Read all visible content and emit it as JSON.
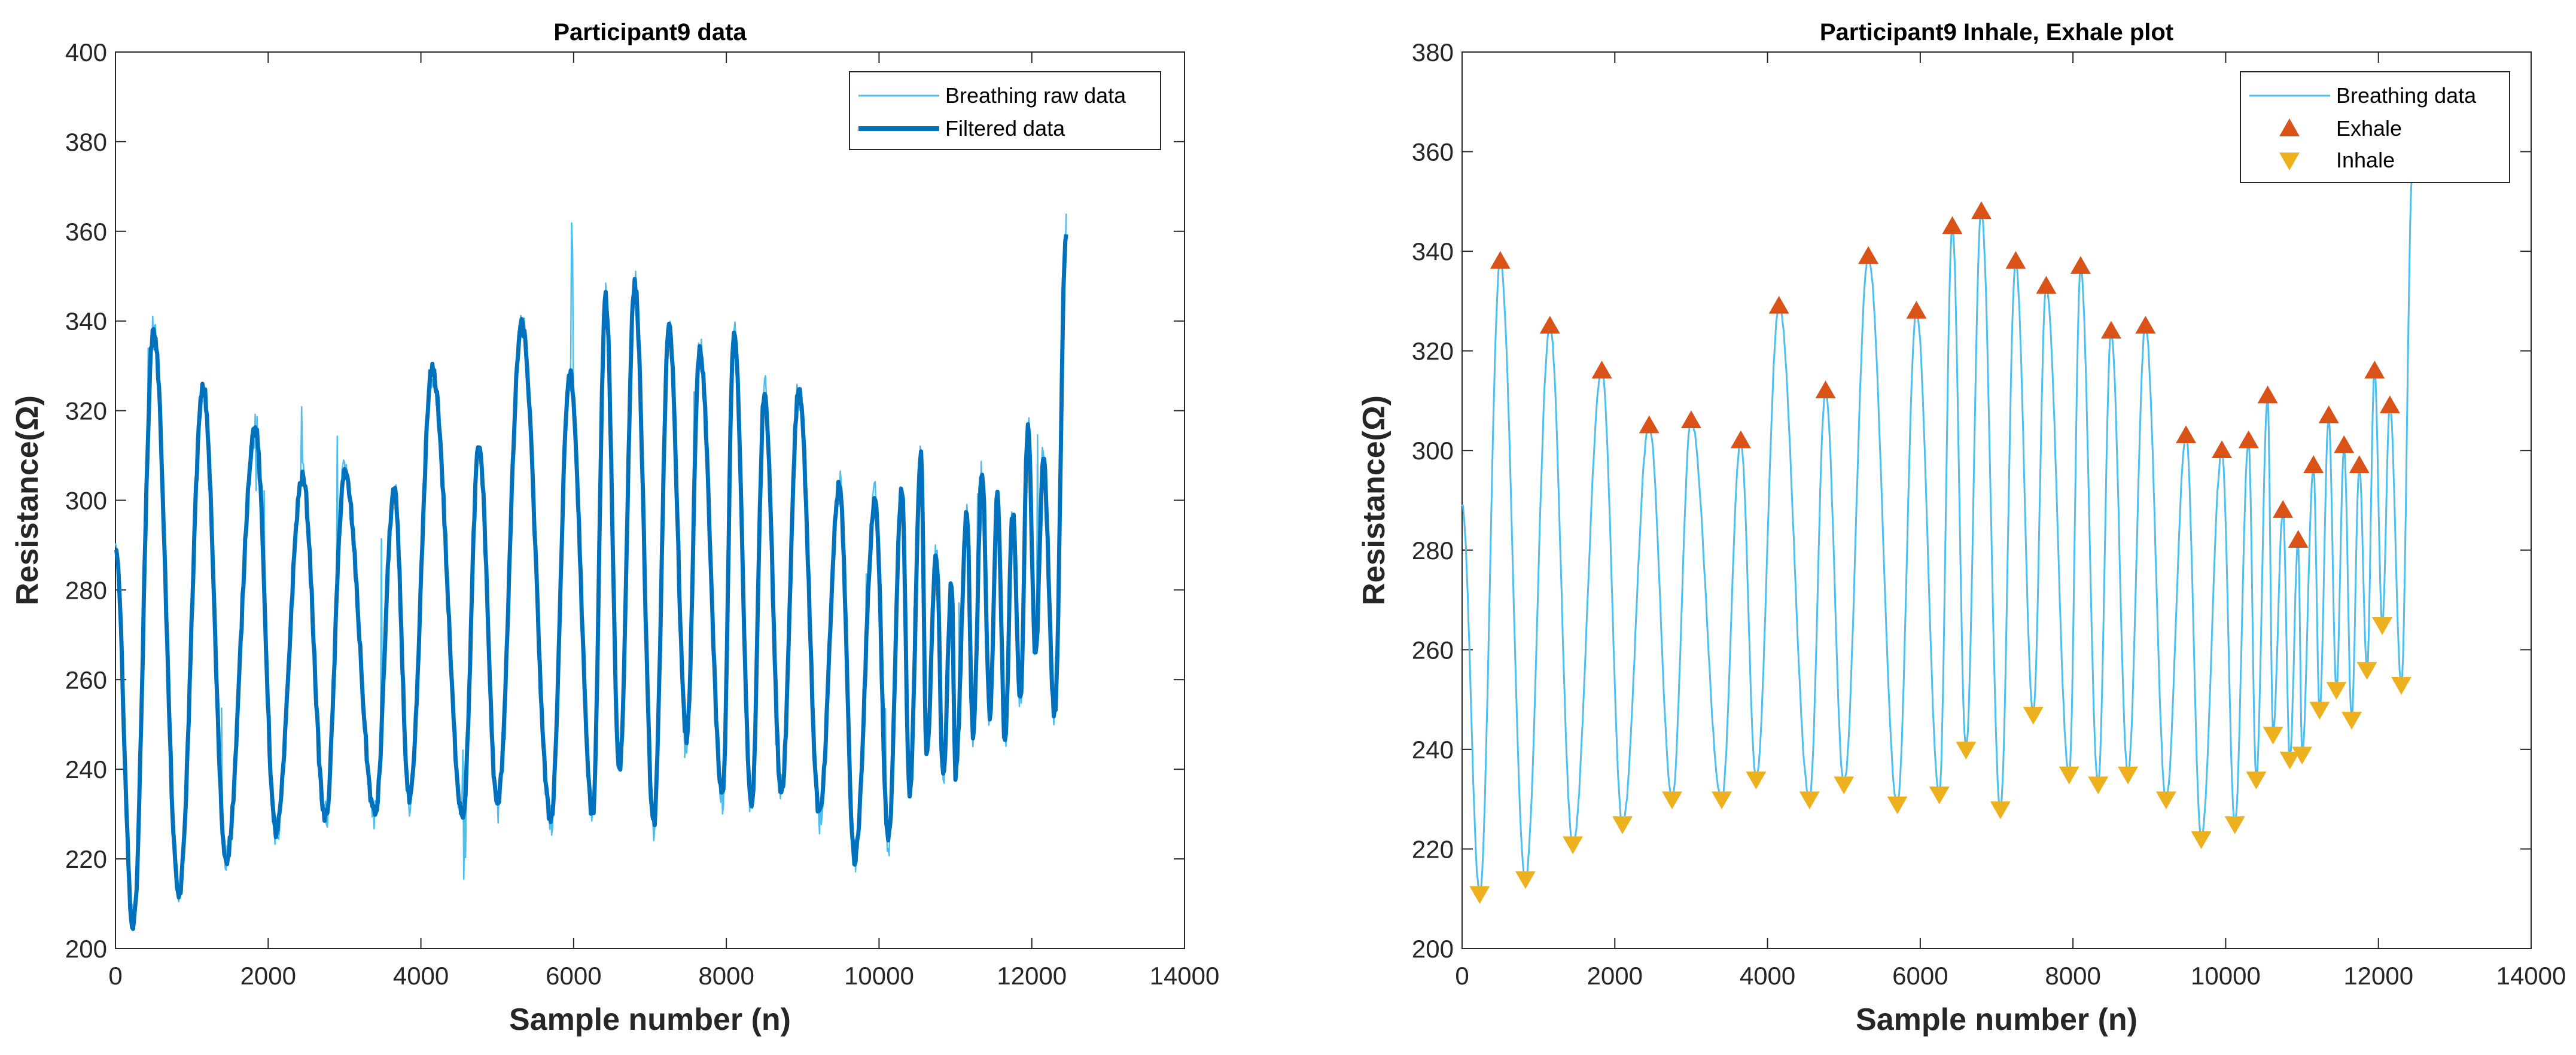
{
  "chart_data": [
    {
      "type": "line",
      "title": "Participant9 data",
      "xlabel": "Sample number (n)",
      "ylabel": "Resistance(Ω)",
      "xlim": [
        0,
        14000
      ],
      "ylim": [
        200,
        400
      ],
      "xticks": [
        0,
        2000,
        4000,
        6000,
        8000,
        10000,
        12000,
        14000
      ],
      "yticks": [
        200,
        220,
        240,
        260,
        280,
        300,
        320,
        340,
        360,
        380,
        400
      ],
      "grid": false,
      "legend_position": "top-right",
      "series": [
        {
          "name": "Breathing raw data",
          "color": "#4DBEEE",
          "style": "thin line"
        },
        {
          "name": "Filtered data",
          "color": "#0072BD",
          "style": "thick line"
        }
      ],
      "peaks": [
        {
          "x": 500,
          "y": 338
        },
        {
          "x": 1150,
          "y": 325
        },
        {
          "x": 1830,
          "y": 316
        },
        {
          "x": 2450,
          "y": 305
        },
        {
          "x": 3000,
          "y": 306
        },
        {
          "x": 3650,
          "y": 302
        },
        {
          "x": 4150,
          "y": 329
        },
        {
          "x": 4760,
          "y": 312
        },
        {
          "x": 5320,
          "y": 339
        },
        {
          "x": 5950,
          "y": 328
        },
        {
          "x": 6420,
          "y": 345
        },
        {
          "x": 6800,
          "y": 348
        },
        {
          "x": 7250,
          "y": 338
        },
        {
          "x": 7650,
          "y": 333
        },
        {
          "x": 8100,
          "y": 337
        },
        {
          "x": 8500,
          "y": 324
        },
        {
          "x": 8950,
          "y": 325
        },
        {
          "x": 9480,
          "y": 303
        },
        {
          "x": 9950,
          "y": 300
        },
        {
          "x": 10300,
          "y": 302
        },
        {
          "x": 10550,
          "y": 311
        },
        {
          "x": 10750,
          "y": 288
        },
        {
          "x": 10950,
          "y": 282
        },
        {
          "x": 11150,
          "y": 297
        },
        {
          "x": 11350,
          "y": 307
        },
        {
          "x": 11550,
          "y": 301
        },
        {
          "x": 11750,
          "y": 297
        },
        {
          "x": 11950,
          "y": 316
        },
        {
          "x": 12150,
          "y": 309
        }
      ],
      "troughs": [
        {
          "x": 230,
          "y": 205
        },
        {
          "x": 830,
          "y": 212
        },
        {
          "x": 1450,
          "y": 220
        },
        {
          "x": 2100,
          "y": 226
        },
        {
          "x": 2750,
          "y": 229
        },
        {
          "x": 3400,
          "y": 230
        },
        {
          "x": 3850,
          "y": 233
        },
        {
          "x": 4550,
          "y": 230
        },
        {
          "x": 5000,
          "y": 232
        },
        {
          "x": 5700,
          "y": 229
        },
        {
          "x": 6250,
          "y": 230
        },
        {
          "x": 6600,
          "y": 240
        },
        {
          "x": 7050,
          "y": 228
        },
        {
          "x": 7480,
          "y": 247
        },
        {
          "x": 7950,
          "y": 234
        },
        {
          "x": 8330,
          "y": 232
        },
        {
          "x": 8720,
          "y": 235
        },
        {
          "x": 9220,
          "y": 230
        },
        {
          "x": 9680,
          "y": 220
        },
        {
          "x": 10120,
          "y": 224
        },
        {
          "x": 10400,
          "y": 234
        },
        {
          "x": 10620,
          "y": 243
        },
        {
          "x": 10840,
          "y": 238
        },
        {
          "x": 11000,
          "y": 239
        },
        {
          "x": 11230,
          "y": 248
        },
        {
          "x": 11450,
          "y": 252
        },
        {
          "x": 11650,
          "y": 246
        },
        {
          "x": 11850,
          "y": 256
        },
        {
          "x": 12050,
          "y": 265
        },
        {
          "x": 12300,
          "y": 252
        }
      ],
      "start": {
        "x": 0,
        "y": 289
      },
      "end": {
        "x": 12450,
        "y": 360
      }
    },
    {
      "type": "line",
      "title": "Participant9 Inhale, Exhale plot",
      "xlabel": "Sample number (n)",
      "ylabel": "Resistance(Ω)",
      "xlim": [
        0,
        14000
      ],
      "ylim": [
        200,
        380
      ],
      "xticks": [
        0,
        2000,
        4000,
        6000,
        8000,
        10000,
        12000,
        14000
      ],
      "yticks": [
        200,
        220,
        240,
        260,
        280,
        300,
        320,
        340,
        360,
        380
      ],
      "grid": false,
      "legend_position": "top-right",
      "series": [
        {
          "name": "Breathing data",
          "color": "#4DBEEE",
          "style": "thin line"
        },
        {
          "name": "Exhale",
          "color": "#D95319",
          "style": "triangle-up markers"
        },
        {
          "name": "Inhale",
          "color": "#EDB120",
          "style": "triangle-down markers"
        }
      ],
      "exhale": [
        {
          "x": 500,
          "y": 338
        },
        {
          "x": 1150,
          "y": 325
        },
        {
          "x": 1830,
          "y": 316
        },
        {
          "x": 2450,
          "y": 305
        },
        {
          "x": 3000,
          "y": 306
        },
        {
          "x": 3650,
          "y": 302
        },
        {
          "x": 4150,
          "y": 329
        },
        {
          "x": 4760,
          "y": 312
        },
        {
          "x": 5320,
          "y": 339
        },
        {
          "x": 5950,
          "y": 328
        },
        {
          "x": 6420,
          "y": 345
        },
        {
          "x": 6800,
          "y": 348
        },
        {
          "x": 7250,
          "y": 338
        },
        {
          "x": 7650,
          "y": 333
        },
        {
          "x": 8100,
          "y": 337
        },
        {
          "x": 8500,
          "y": 324
        },
        {
          "x": 8950,
          "y": 325
        },
        {
          "x": 9480,
          "y": 303
        },
        {
          "x": 9950,
          "y": 300
        },
        {
          "x": 10300,
          "y": 302
        },
        {
          "x": 10550,
          "y": 311
        },
        {
          "x": 10750,
          "y": 288
        },
        {
          "x": 10950,
          "y": 282
        },
        {
          "x": 11150,
          "y": 297
        },
        {
          "x": 11350,
          "y": 307
        },
        {
          "x": 11550,
          "y": 301
        },
        {
          "x": 11750,
          "y": 297
        },
        {
          "x": 11950,
          "y": 316
        },
        {
          "x": 12150,
          "y": 309
        }
      ],
      "inhale": [
        {
          "x": 230,
          "y": 211
        },
        {
          "x": 830,
          "y": 214
        },
        {
          "x": 1450,
          "y": 221
        },
        {
          "x": 2100,
          "y": 225
        },
        {
          "x": 2750,
          "y": 230
        },
        {
          "x": 3400,
          "y": 230
        },
        {
          "x": 3850,
          "y": 234
        },
        {
          "x": 4550,
          "y": 230
        },
        {
          "x": 5000,
          "y": 233
        },
        {
          "x": 5700,
          "y": 229
        },
        {
          "x": 6250,
          "y": 231
        },
        {
          "x": 6600,
          "y": 240
        },
        {
          "x": 7050,
          "y": 228
        },
        {
          "x": 7480,
          "y": 247
        },
        {
          "x": 7950,
          "y": 235
        },
        {
          "x": 8330,
          "y": 233
        },
        {
          "x": 8720,
          "y": 235
        },
        {
          "x": 9220,
          "y": 230
        },
        {
          "x": 9680,
          "y": 222
        },
        {
          "x": 10120,
          "y": 225
        },
        {
          "x": 10400,
          "y": 234
        },
        {
          "x": 10620,
          "y": 243
        },
        {
          "x": 10840,
          "y": 238
        },
        {
          "x": 11000,
          "y": 239
        },
        {
          "x": 11230,
          "y": 248
        },
        {
          "x": 11450,
          "y": 252
        },
        {
          "x": 11650,
          "y": 246
        },
        {
          "x": 11850,
          "y": 256
        },
        {
          "x": 12050,
          "y": 265
        },
        {
          "x": 12300,
          "y": 253
        }
      ],
      "start": {
        "x": 0,
        "y": 289
      },
      "end": {
        "x": 12450,
        "y": 358
      }
    }
  ]
}
